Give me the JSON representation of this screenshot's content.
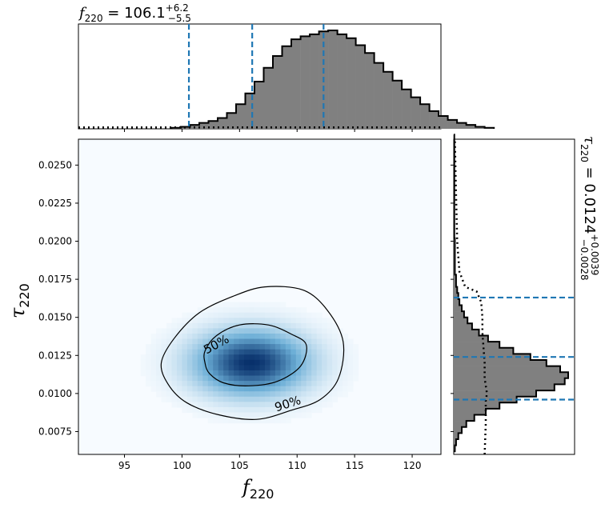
{
  "chart_data": [
    {
      "panel": "top-marginal",
      "type": "histogram",
      "title": {
        "symbol": "f",
        "subscript": "220",
        "equals": " = ",
        "value": "106.1",
        "upper": "+6.2",
        "lower": "−5.5"
      },
      "xlim": [
        91,
        122.5
      ],
      "bin_width": 0.8,
      "bin_start": 99.1,
      "counts": [
        0.01,
        0.02,
        0.04,
        0.06,
        0.08,
        0.11,
        0.16,
        0.25,
        0.36,
        0.48,
        0.62,
        0.74,
        0.84,
        0.91,
        0.94,
        0.96,
        0.99,
        1.0,
        0.96,
        0.92,
        0.85,
        0.77,
        0.67,
        0.58,
        0.49,
        0.4,
        0.32,
        0.25,
        0.18,
        0.13,
        0.09,
        0.06,
        0.04,
        0.02,
        0.01
      ],
      "quantile_lines": [
        100.6,
        106.1,
        112.3
      ],
      "prior_level": 0.03,
      "colors": {
        "fill": "#808080",
        "edge": "#000000",
        "quantile": "#1f77b4"
      }
    },
    {
      "panel": "main-density",
      "type": "heatmap",
      "xlabel": {
        "symbol": "f",
        "subscript": "220"
      },
      "ylabel": {
        "symbol": "τ",
        "subscript": "220"
      },
      "xlim": [
        91,
        122.5
      ],
      "ylim": [
        0.006,
        0.0267
      ],
      "xticks": [
        "95",
        "100",
        "105",
        "110",
        "115",
        "120"
      ],
      "xtick_values": [
        95,
        100,
        105,
        110,
        115,
        120
      ],
      "yticks": [
        "0.0075",
        "0.0100",
        "0.0125",
        "0.0150",
        "0.0175",
        "0.0200",
        "0.0225",
        "0.0250"
      ],
      "ytick_values": [
        0.0075,
        0.01,
        0.0125,
        0.015,
        0.0175,
        0.02,
        0.0225,
        0.025
      ],
      "density_peak": {
        "x": 106.0,
        "y": 0.012
      },
      "density_spread": {
        "x": 3.4,
        "y": 0.00145
      },
      "contours": [
        {
          "label": "50%",
          "points": [
            [
              102.0,
              0.0128
            ],
            [
              103.0,
              0.0138
            ],
            [
              105.0,
              0.0145
            ],
            [
              107.5,
              0.0145
            ],
            [
              109.5,
              0.0139
            ],
            [
              110.8,
              0.0132
            ],
            [
              110.3,
              0.0118
            ],
            [
              108.3,
              0.0108
            ],
            [
              105.8,
              0.0105
            ],
            [
              103.6,
              0.0107
            ],
            [
              102.4,
              0.0113
            ],
            [
              102.0,
              0.012
            ]
          ],
          "label_pos": [
            103.0,
            0.0132
          ],
          "label_angle": -28
        },
        {
          "label": "90%",
          "points": [
            [
              98.2,
              0.012
            ],
            [
              99.3,
              0.0136
            ],
            [
              101.5,
              0.0153
            ],
            [
              104.5,
              0.0164
            ],
            [
              107.2,
              0.017
            ],
            [
              110.5,
              0.0168
            ],
            [
              112.6,
              0.0155
            ],
            [
              114.0,
              0.0134
            ],
            [
              113.6,
              0.011
            ],
            [
              112.0,
              0.0096
            ],
            [
              109.5,
              0.0089
            ],
            [
              106.5,
              0.0083
            ],
            [
              103.2,
              0.0086
            ],
            [
              100.4,
              0.0094
            ],
            [
              98.8,
              0.0106
            ]
          ],
          "label_pos": [
            109.2,
            0.0093
          ],
          "label_angle": -18
        }
      ],
      "colors": {
        "cmap_low": "#f7fbff",
        "cmap_high": "#08306b",
        "contour": "#000000"
      }
    },
    {
      "panel": "right-marginal",
      "type": "histogram",
      "orientation": "horizontal",
      "title": {
        "symbol": "τ",
        "subscript": "220",
        "equals": " = ",
        "value": "0.0124",
        "upper": "+0.0039",
        "lower": "−0.0028"
      },
      "ylim": [
        0.006,
        0.0267
      ],
      "bin_width": 0.0004,
      "bin_start": 0.0062,
      "counts": [
        0.01,
        0.02,
        0.04,
        0.07,
        0.11,
        0.18,
        0.28,
        0.4,
        0.55,
        0.72,
        0.88,
        0.97,
        1.0,
        0.93,
        0.81,
        0.67,
        0.52,
        0.4,
        0.3,
        0.22,
        0.16,
        0.12,
        0.09,
        0.07,
        0.05,
        0.04,
        0.03,
        0.02,
        0.02,
        0.01,
        0.01,
        0.01,
        0.01,
        0.01,
        0.01,
        0.005,
        0.005,
        0.005,
        0.005,
        0.005,
        0.005,
        0.005,
        0.005,
        0.005,
        0.005,
        0.005,
        0.005,
        0.005,
        0.005,
        0.005,
        0.005,
        0.005
      ],
      "quantile_lines": [
        0.0096,
        0.0124,
        0.0163
      ],
      "prior_curve": [
        [
          0.006,
          0.27
        ],
        [
          0.008,
          0.28
        ],
        [
          0.0095,
          0.28
        ],
        [
          0.01,
          0.29
        ],
        [
          0.011,
          0.27
        ],
        [
          0.012,
          0.27
        ],
        [
          0.013,
          0.26
        ],
        [
          0.014,
          0.25
        ],
        [
          0.015,
          0.25
        ],
        [
          0.016,
          0.24
        ],
        [
          0.0167,
          0.2
        ],
        [
          0.017,
          0.1
        ],
        [
          0.018,
          0.05
        ],
        [
          0.02,
          0.03
        ],
        [
          0.023,
          0.02
        ],
        [
          0.0267,
          0.01
        ]
      ],
      "colors": {
        "fill": "#808080",
        "edge": "#000000",
        "quantile": "#1f77b4"
      }
    }
  ]
}
